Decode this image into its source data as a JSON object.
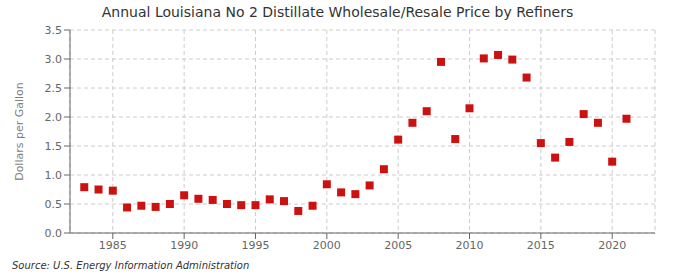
{
  "chart_data": {
    "type": "scatter",
    "title": "Annual Louisiana No 2 Distillate Wholesale/Resale Price by Refiners",
    "ylabel": "Dollars per Gallon",
    "annotations": [
      "Source: U.S. Energy Information Administration"
    ],
    "x": [
      1983,
      1984,
      1985,
      1986,
      1987,
      1988,
      1989,
      1990,
      1991,
      1992,
      1993,
      1994,
      1995,
      1996,
      1997,
      1998,
      1999,
      2000,
      2001,
      2002,
      2003,
      2004,
      2005,
      2006,
      2007,
      2008,
      2009,
      2010,
      2011,
      2012,
      2013,
      2014,
      2015,
      2016,
      2017,
      2018,
      2019,
      2020,
      2021
    ],
    "values": [
      0.79,
      0.75,
      0.73,
      0.44,
      0.47,
      0.45,
      0.5,
      0.65,
      0.59,
      0.57,
      0.5,
      0.48,
      0.48,
      0.58,
      0.55,
      0.38,
      0.47,
      0.84,
      0.7,
      0.67,
      0.82,
      1.1,
      1.61,
      1.9,
      2.1,
      2.95,
      1.62,
      2.15,
      3.01,
      3.07,
      2.99,
      2.68,
      1.55,
      1.3,
      1.57,
      2.05,
      1.9,
      1.23,
      1.97
    ],
    "color": "#cc1111",
    "marker": "square",
    "xlim": [
      1982,
      2023
    ],
    "ylim": [
      0.0,
      3.5
    ],
    "xticks": [
      1985,
      1990,
      1995,
      2000,
      2005,
      2010,
      2015,
      2020
    ],
    "yticks": [
      {
        "value": 0.0,
        "label": "0.0"
      },
      0.5,
      {
        "value": 1.0,
        "label": "1.0"
      },
      1.5,
      {
        "value": 2.0,
        "label": "2.0"
      },
      2.5,
      {
        "value": 3.0,
        "label": "3.0"
      },
      3.5
    ],
    "grid": true
  }
}
